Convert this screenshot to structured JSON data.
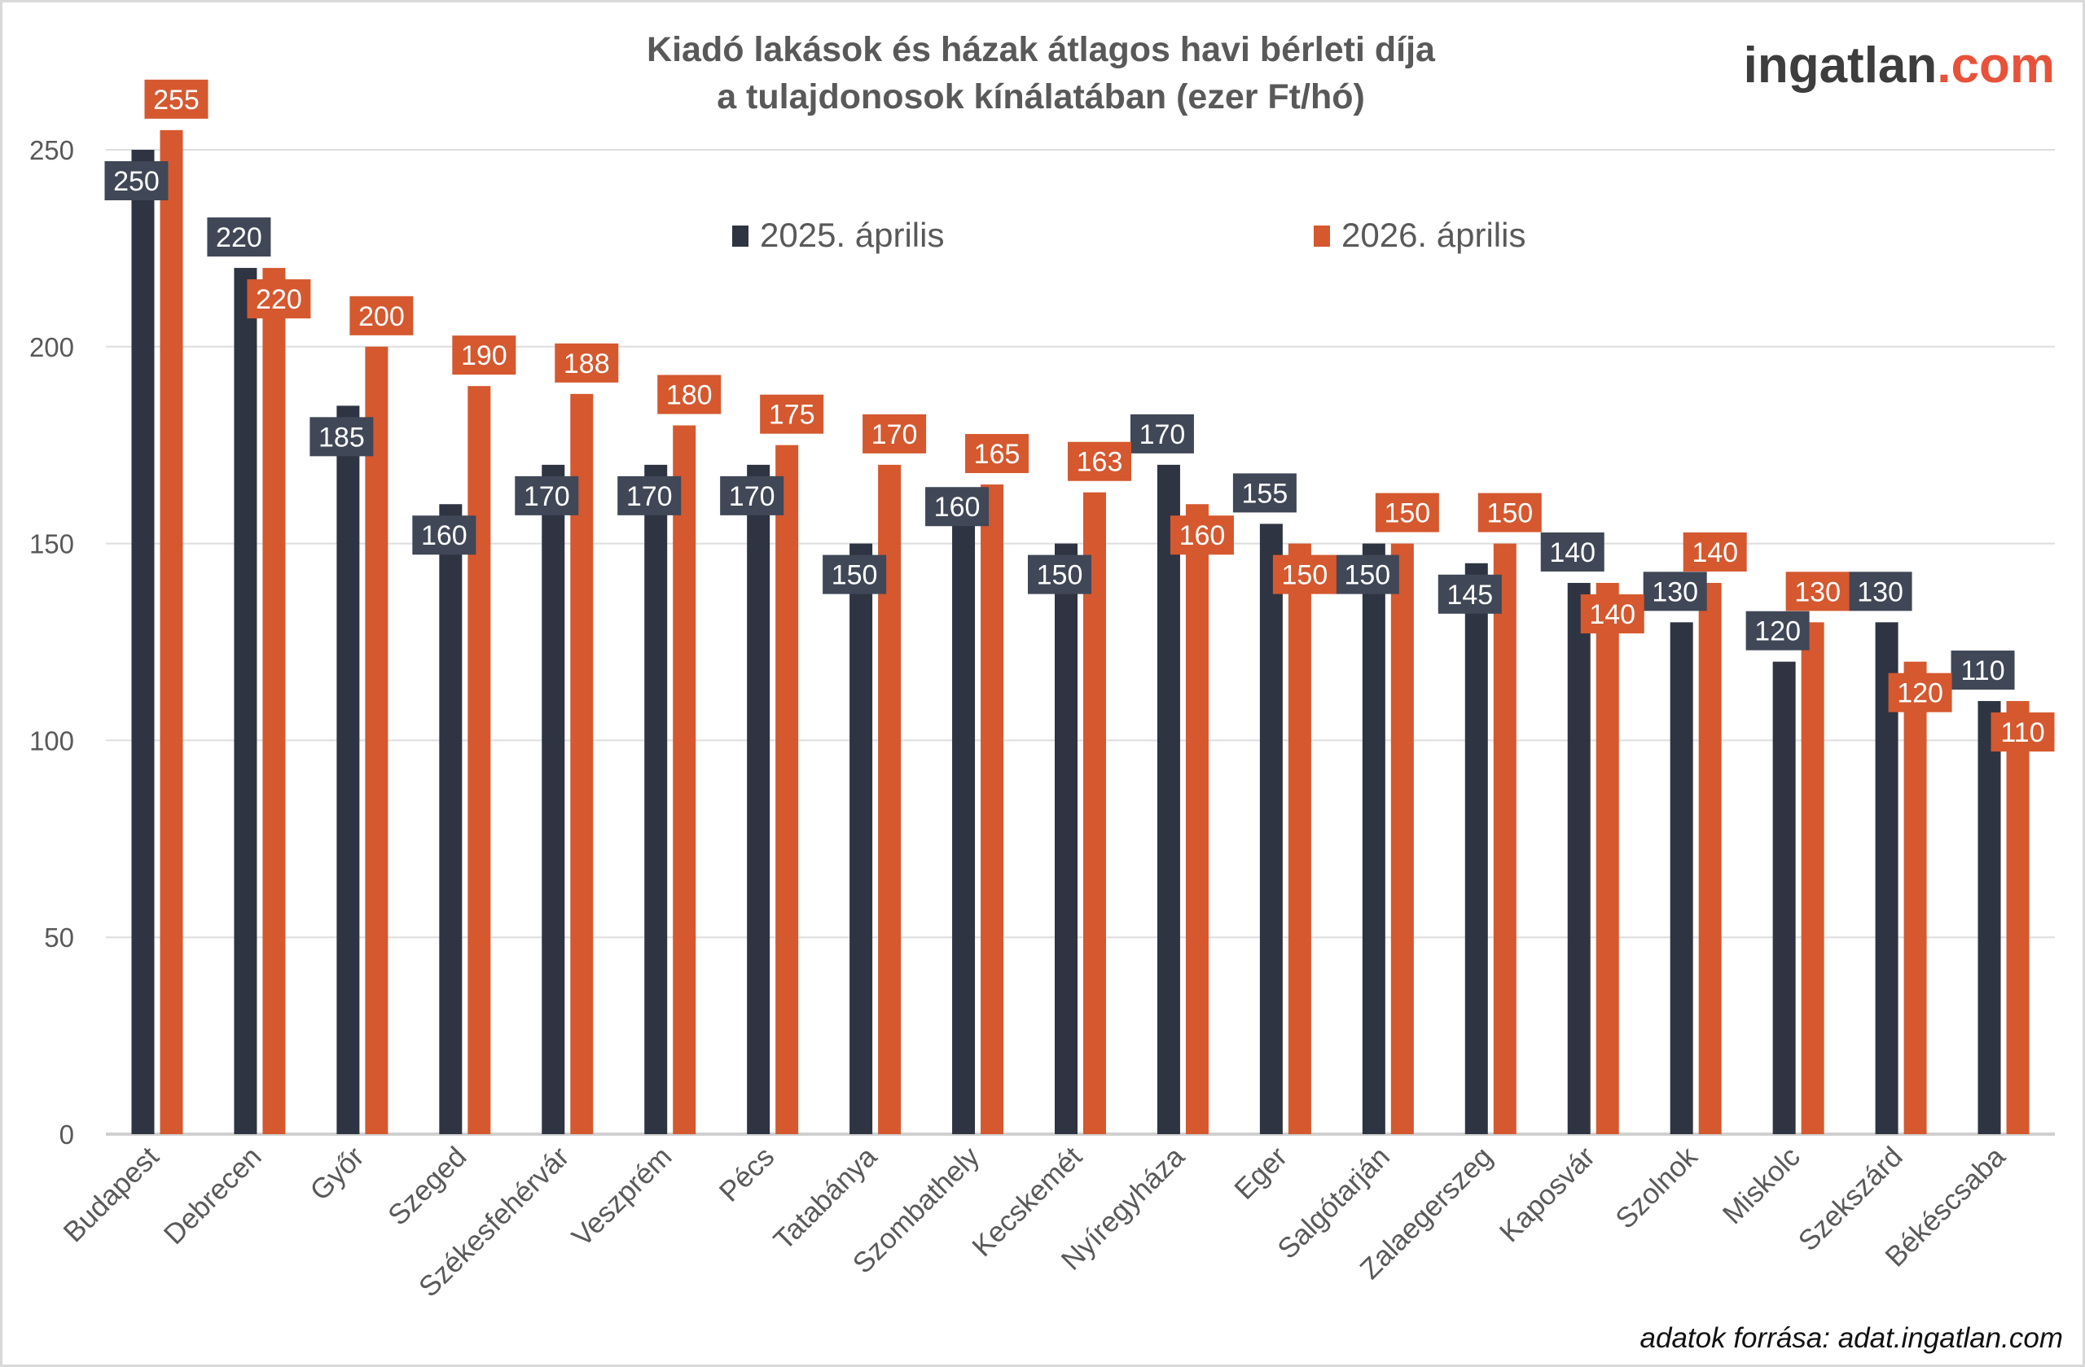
{
  "chart_data": {
    "type": "bar",
    "title": [
      "Kiadó lakások és házak átlagos havi bérleti díja",
      "a tulajdonosok kínálatában (ezer Ft/hó)"
    ],
    "xlabel": "",
    "ylabel": "",
    "ylim": [
      0,
      250
    ],
    "yticks": [
      "0",
      "50",
      "100",
      "150",
      "200",
      "250"
    ],
    "grid": true,
    "legend_position": "top",
    "categories": [
      "Budapest",
      "Debrecen",
      "Győr",
      "Szeged",
      "Székesfehérvár",
      "Veszprém",
      "Pécs",
      "Tatabánya",
      "Szombathely",
      "Kecskemét",
      "Nyíregyháza",
      "Eger",
      "Salgótarján",
      "Zalaegerszeg",
      "Kaposvár",
      "Szolnok",
      "Miskolc",
      "Szekszárd",
      "Békéscsaba"
    ],
    "series": [
      {
        "name": "2025. április",
        "color": "#2e3441",
        "values": [
          250,
          220,
          185,
          160,
          170,
          170,
          170,
          150,
          160,
          150,
          170,
          155,
          150,
          145,
          140,
          130,
          120,
          130,
          110
        ]
      },
      {
        "name": "2026. április",
        "color": "#d5582f",
        "values": [
          255,
          220,
          200,
          190,
          188,
          180,
          175,
          170,
          165,
          163,
          160,
          150,
          150,
          150,
          140,
          140,
          130,
          120,
          110
        ]
      }
    ],
    "data_labels": true
  },
  "logo": {
    "part1": "ingatlan",
    "part2": ".com"
  },
  "source": "adatok forrása: adat.ingatlan.com"
}
